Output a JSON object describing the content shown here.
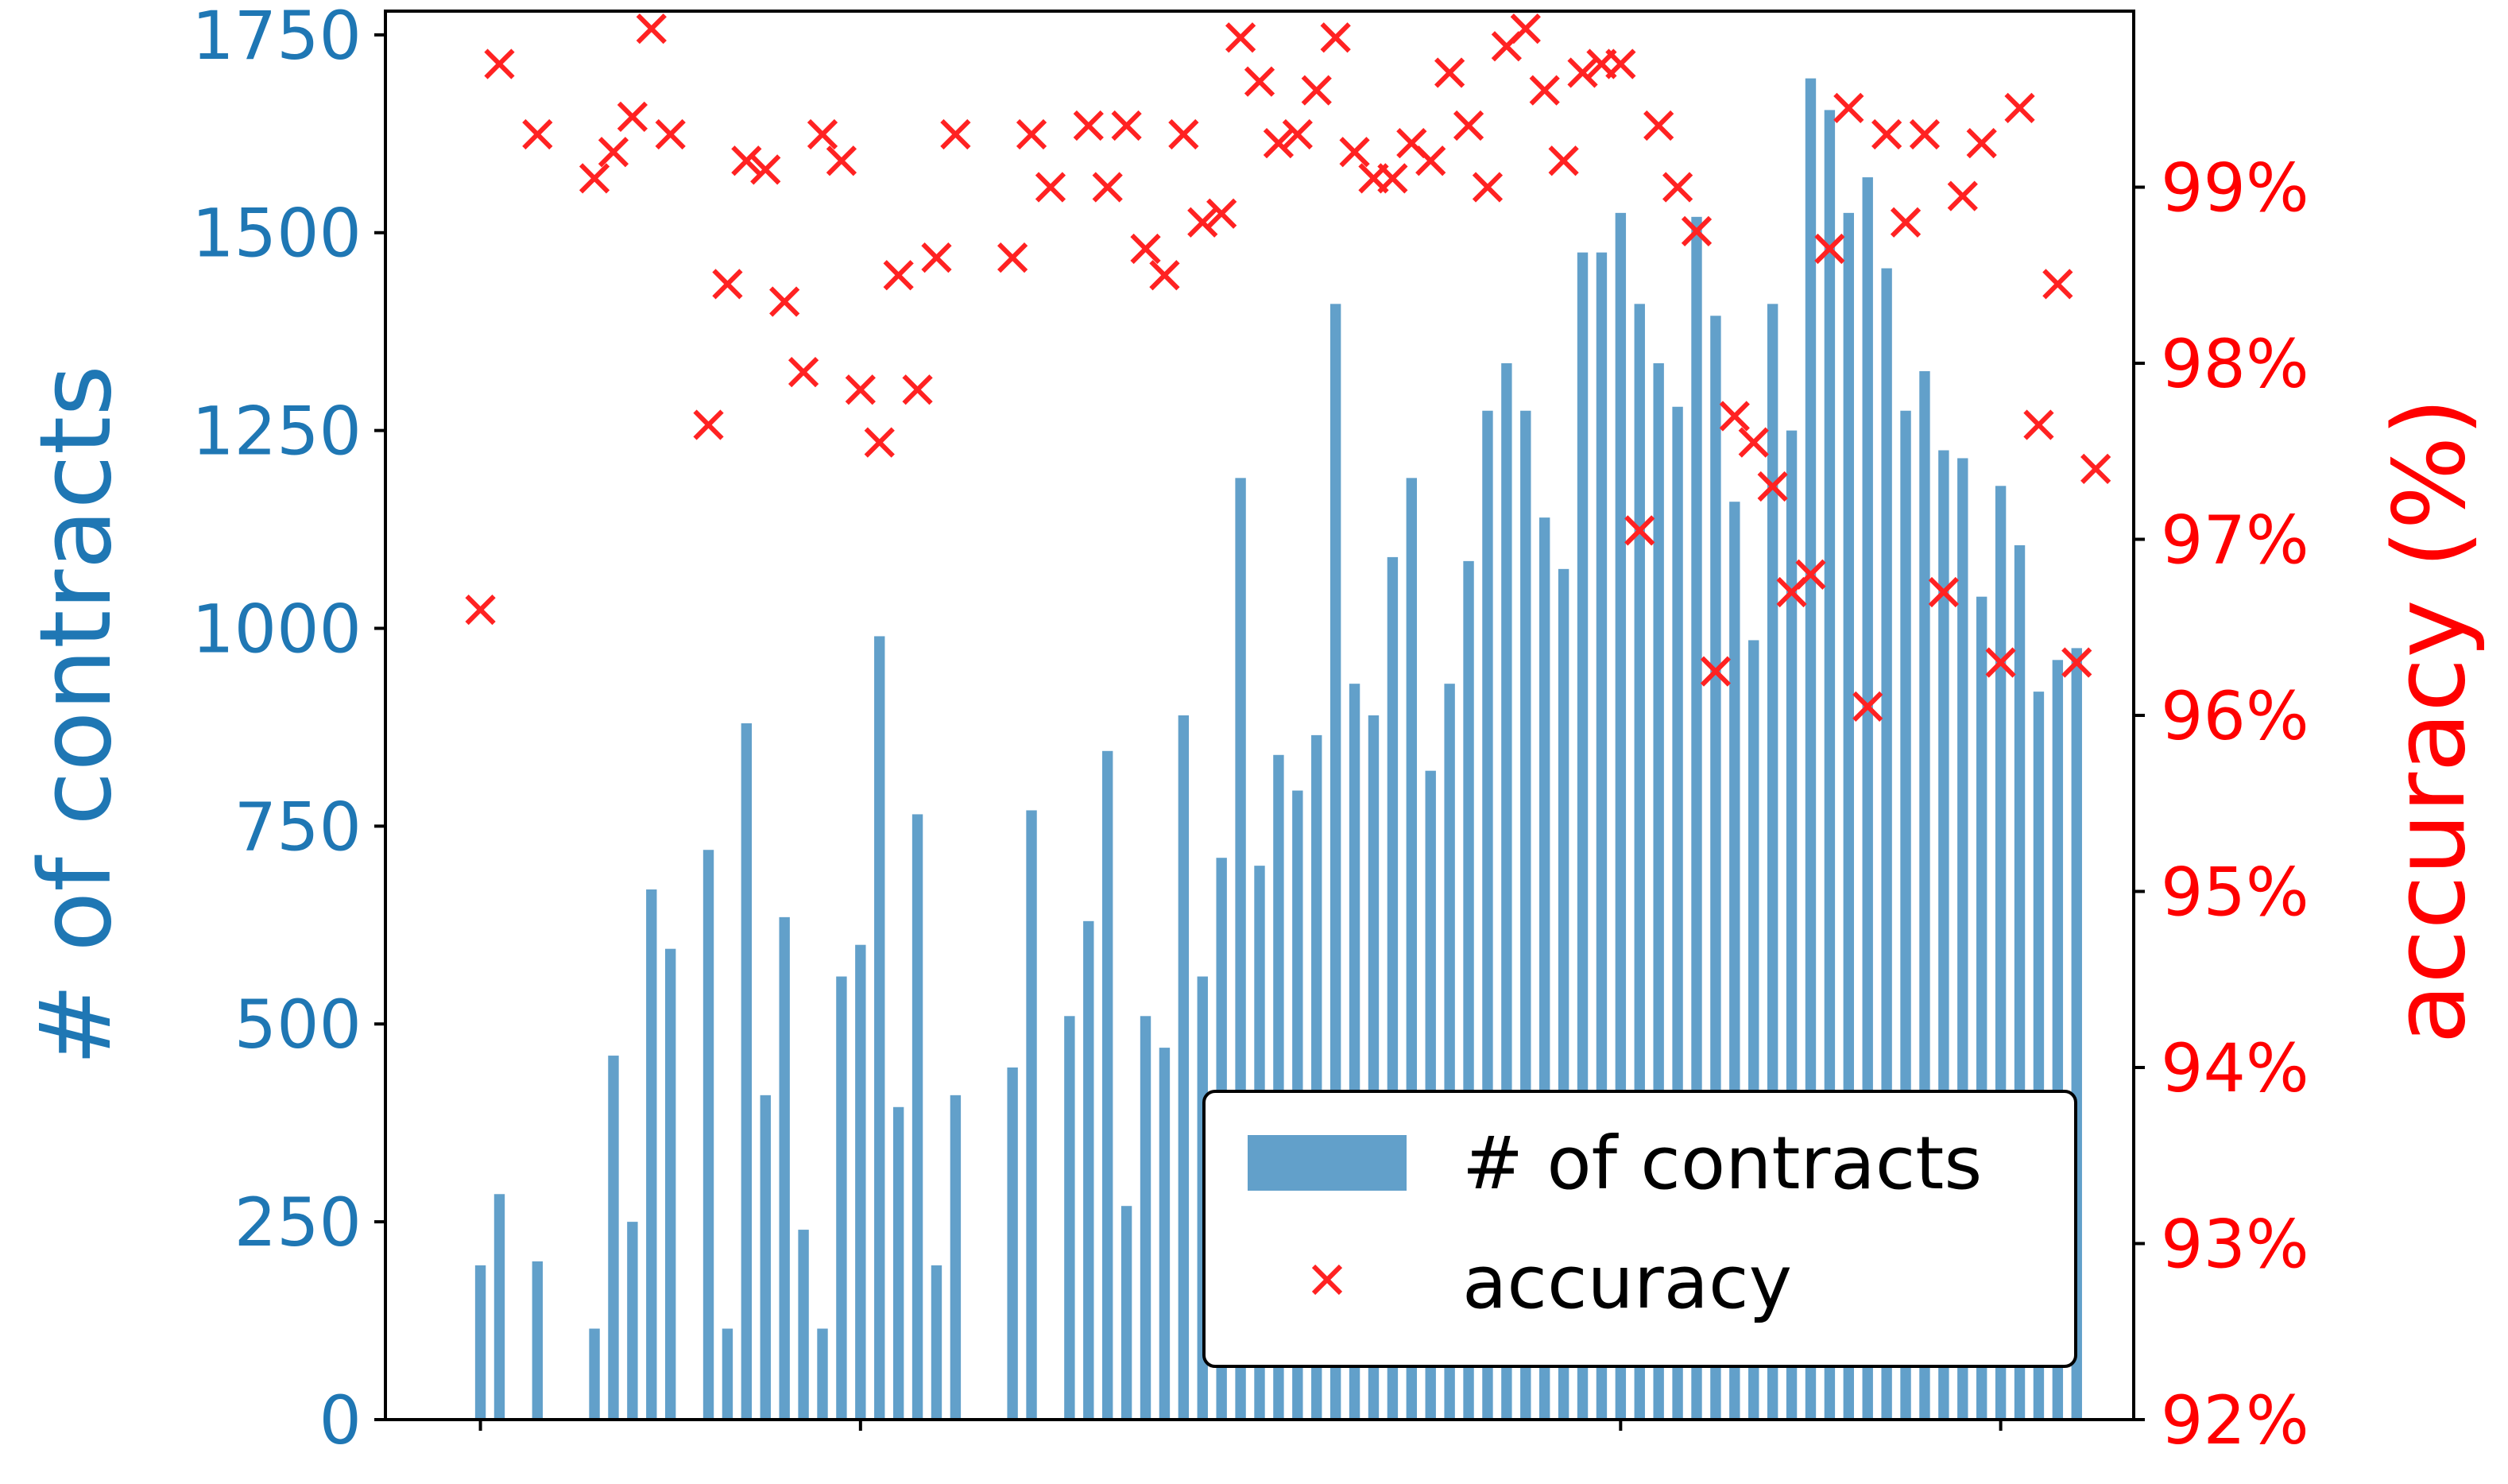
{
  "chart_data": {
    "type": "bar+scatter",
    "left_axis": {
      "label": "# of contracts",
      "color": "#1f77b4",
      "range": [
        0,
        1780
      ],
      "ticks": [
        0,
        250,
        500,
        750,
        1000,
        1250,
        1500,
        1750
      ],
      "tick_labels": [
        "0",
        "250",
        "500",
        "750",
        "1000",
        "1250",
        "1500",
        "1750"
      ]
    },
    "right_axis": {
      "label": "accuracy (%)",
      "color": "#ff0000",
      "range": [
        92,
        100
      ],
      "ticks": [
        92,
        93,
        94,
        95,
        96,
        97,
        98,
        99
      ],
      "tick_labels": [
        "92%",
        "93%",
        "94%",
        "95%",
        "96%",
        "97%",
        "98%",
        "99%"
      ]
    },
    "x_range": [
      0,
      92
    ],
    "bar_color": "#1f77b4",
    "bar_opacity": 0.7,
    "bars": [
      {
        "x": 5,
        "value": 195
      },
      {
        "x": 6,
        "value": 285
      },
      {
        "x": 8,
        "value": 200
      },
      {
        "x": 11,
        "value": 115
      },
      {
        "x": 12,
        "value": 460
      },
      {
        "x": 13,
        "value": 250
      },
      {
        "x": 14,
        "value": 670
      },
      {
        "x": 15,
        "value": 595
      },
      {
        "x": 17,
        "value": 720
      },
      {
        "x": 18,
        "value": 115
      },
      {
        "x": 19,
        "value": 880
      },
      {
        "x": 20,
        "value": 410
      },
      {
        "x": 21,
        "value": 635
      },
      {
        "x": 22,
        "value": 240
      },
      {
        "x": 23,
        "value": 115
      },
      {
        "x": 24,
        "value": 560
      },
      {
        "x": 25,
        "value": 600
      },
      {
        "x": 26,
        "value": 990
      },
      {
        "x": 27,
        "value": 395
      },
      {
        "x": 28,
        "value": 765
      },
      {
        "x": 29,
        "value": 195
      },
      {
        "x": 30,
        "value": 410
      },
      {
        "x": 33,
        "value": 445
      },
      {
        "x": 34,
        "value": 770
      },
      {
        "x": 36,
        "value": 510
      },
      {
        "x": 37,
        "value": 630
      },
      {
        "x": 38,
        "value": 845
      },
      {
        "x": 39,
        "value": 270
      },
      {
        "x": 40,
        "value": 510
      },
      {
        "x": 41,
        "value": 470
      },
      {
        "x": 42,
        "value": 890
      },
      {
        "x": 43,
        "value": 560
      },
      {
        "x": 44,
        "value": 710
      },
      {
        "x": 45,
        "value": 1190
      },
      {
        "x": 46,
        "value": 700
      },
      {
        "x": 47,
        "value": 840
      },
      {
        "x": 48,
        "value": 795
      },
      {
        "x": 49,
        "value": 865
      },
      {
        "x": 50,
        "value": 1410
      },
      {
        "x": 51,
        "value": 930
      },
      {
        "x": 52,
        "value": 890
      },
      {
        "x": 53,
        "value": 1090
      },
      {
        "x": 54,
        "value": 1190
      },
      {
        "x": 55,
        "value": 820
      },
      {
        "x": 56,
        "value": 930
      },
      {
        "x": 57,
        "value": 1085
      },
      {
        "x": 58,
        "value": 1275
      },
      {
        "x": 59,
        "value": 1335
      },
      {
        "x": 60,
        "value": 1275
      },
      {
        "x": 61,
        "value": 1140
      },
      {
        "x": 62,
        "value": 1075
      },
      {
        "x": 63,
        "value": 1475
      },
      {
        "x": 64,
        "value": 1475
      },
      {
        "x": 65,
        "value": 1525
      },
      {
        "x": 66,
        "value": 1410
      },
      {
        "x": 67,
        "value": 1335
      },
      {
        "x": 68,
        "value": 1280
      },
      {
        "x": 69,
        "value": 1520
      },
      {
        "x": 70,
        "value": 1395
      },
      {
        "x": 71,
        "value": 1160
      },
      {
        "x": 72,
        "value": 985
      },
      {
        "x": 73,
        "value": 1410
      },
      {
        "x": 74,
        "value": 1250
      },
      {
        "x": 75,
        "value": 1695
      },
      {
        "x": 76,
        "value": 1655
      },
      {
        "x": 77,
        "value": 1525
      },
      {
        "x": 78,
        "value": 1570
      },
      {
        "x": 79,
        "value": 1455
      },
      {
        "x": 80,
        "value": 1275
      },
      {
        "x": 81,
        "value": 1325
      },
      {
        "x": 82,
        "value": 1225
      },
      {
        "x": 83,
        "value": 1215
      },
      {
        "x": 84,
        "value": 1040
      },
      {
        "x": 85,
        "value": 1180
      },
      {
        "x": 86,
        "value": 1105
      },
      {
        "x": 87,
        "value": 920
      },
      {
        "x": 88,
        "value": 960
      },
      {
        "x": 89,
        "value": 975
      }
    ],
    "marker_color": "#ff2222",
    "accuracy": [
      {
        "x": 5,
        "y": 96.6
      },
      {
        "x": 6,
        "y": 99.7
      },
      {
        "x": 8,
        "y": 99.3
      },
      {
        "x": 11,
        "y": 99.05
      },
      {
        "x": 12,
        "y": 99.2
      },
      {
        "x": 13,
        "y": 99.4
      },
      {
        "x": 14,
        "y": 99.9
      },
      {
        "x": 15,
        "y": 99.3
      },
      {
        "x": 17,
        "y": 97.65
      },
      {
        "x": 18,
        "y": 98.45
      },
      {
        "x": 19,
        "y": 99.15
      },
      {
        "x": 20,
        "y": 99.1
      },
      {
        "x": 21,
        "y": 98.35
      },
      {
        "x": 22,
        "y": 97.95
      },
      {
        "x": 23,
        "y": 99.3
      },
      {
        "x": 24,
        "y": 99.15
      },
      {
        "x": 25,
        "y": 97.85
      },
      {
        "x": 26,
        "y": 97.55
      },
      {
        "x": 27,
        "y": 98.5
      },
      {
        "x": 28,
        "y": 97.85
      },
      {
        "x": 29,
        "y": 98.6
      },
      {
        "x": 30,
        "y": 99.3
      },
      {
        "x": 33,
        "y": 98.6
      },
      {
        "x": 34,
        "y": 99.3
      },
      {
        "x": 35,
        "y": 99.0
      },
      {
        "x": 37,
        "y": 99.35
      },
      {
        "x": 38,
        "y": 99.0
      },
      {
        "x": 39,
        "y": 99.35
      },
      {
        "x": 40,
        "y": 98.65
      },
      {
        "x": 41,
        "y": 98.5
      },
      {
        "x": 42,
        "y": 99.3
      },
      {
        "x": 43,
        "y": 98.8
      },
      {
        "x": 44,
        "y": 98.85
      },
      {
        "x": 45,
        "y": 99.85
      },
      {
        "x": 46,
        "y": 99.6
      },
      {
        "x": 47,
        "y": 99.25
      },
      {
        "x": 48,
        "y": 99.3
      },
      {
        "x": 49,
        "y": 99.55
      },
      {
        "x": 50,
        "y": 99.85
      },
      {
        "x": 51,
        "y": 99.2
      },
      {
        "x": 52,
        "y": 99.05
      },
      {
        "x": 53,
        "y": 99.05
      },
      {
        "x": 54,
        "y": 99.25
      },
      {
        "x": 55,
        "y": 99.15
      },
      {
        "x": 56,
        "y": 99.65
      },
      {
        "x": 57,
        "y": 99.35
      },
      {
        "x": 58,
        "y": 99.0
      },
      {
        "x": 59,
        "y": 99.8
      },
      {
        "x": 60,
        "y": 99.9
      },
      {
        "x": 61,
        "y": 99.55
      },
      {
        "x": 62,
        "y": 99.15
      },
      {
        "x": 63,
        "y": 99.65
      },
      {
        "x": 64,
        "y": 99.7
      },
      {
        "x": 65,
        "y": 99.7
      },
      {
        "x": 66,
        "y": 97.05
      },
      {
        "x": 67,
        "y": 99.35
      },
      {
        "x": 68,
        "y": 99.0
      },
      {
        "x": 69,
        "y": 98.75
      },
      {
        "x": 70,
        "y": 96.25
      },
      {
        "x": 71,
        "y": 97.7
      },
      {
        "x": 72,
        "y": 97.55
      },
      {
        "x": 73,
        "y": 97.3
      },
      {
        "x": 74,
        "y": 96.7
      },
      {
        "x": 75,
        "y": 96.8
      },
      {
        "x": 76,
        "y": 98.65
      },
      {
        "x": 77,
        "y": 99.45
      },
      {
        "x": 78,
        "y": 96.05
      },
      {
        "x": 79,
        "y": 99.3
      },
      {
        "x": 80,
        "y": 98.8
      },
      {
        "x": 81,
        "y": 99.3
      },
      {
        "x": 82,
        "y": 96.7
      },
      {
        "x": 83,
        "y": 98.95
      },
      {
        "x": 84,
        "y": 99.25
      },
      {
        "x": 85,
        "y": 96.3
      },
      {
        "x": 86,
        "y": 99.45
      },
      {
        "x": 87,
        "y": 97.65
      },
      {
        "x": 88,
        "y": 98.45
      },
      {
        "x": 89,
        "y": 96.3
      },
      {
        "x": 90,
        "y": 97.4
      }
    ],
    "x_ticks": [
      5,
      25,
      65,
      85
    ],
    "legend": {
      "position": "lower-right",
      "bar_label": "# of contracts",
      "marker_label": "accuracy"
    }
  }
}
